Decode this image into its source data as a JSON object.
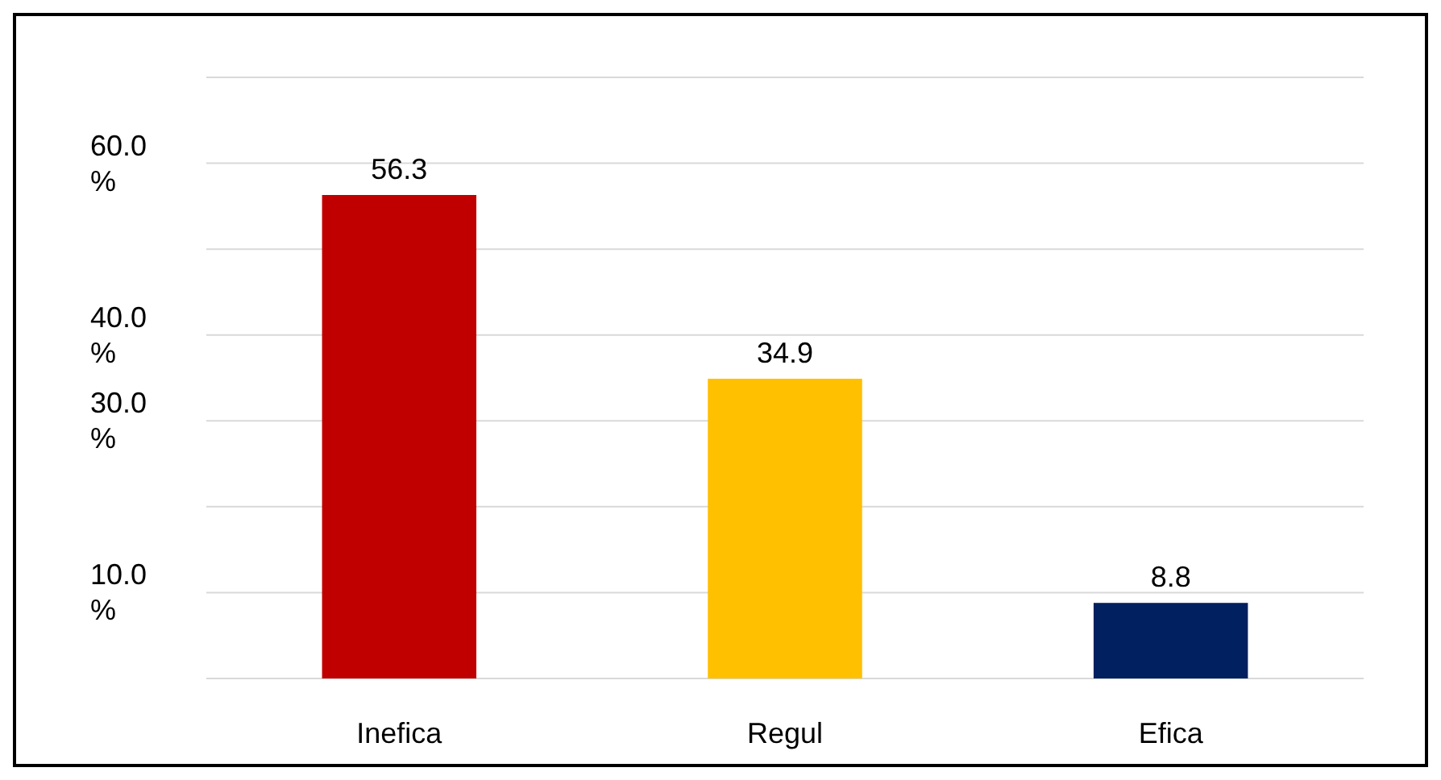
{
  "chart_data": {
    "type": "bar",
    "categories": [
      "Inefica",
      "Regul",
      "Efica"
    ],
    "values": [
      56.3,
      34.9,
      8.8
    ],
    "colors": [
      "#c00000",
      "#ffc000",
      "#002060"
    ],
    "ylim": [
      0,
      70
    ],
    "yticks": [
      {
        "value": 0,
        "label": null
      },
      {
        "value": 10,
        "label": "10.0 %"
      },
      {
        "value": 20,
        "label": null
      },
      {
        "value": 30,
        "label": "30.0 %"
      },
      {
        "value": 40,
        "label": "40.0 %"
      },
      {
        "value": 50,
        "label": null
      },
      {
        "value": 60,
        "label": "60.0 %"
      },
      {
        "value": 70,
        "label": null
      }
    ],
    "grid": "y",
    "data_labels": true
  }
}
